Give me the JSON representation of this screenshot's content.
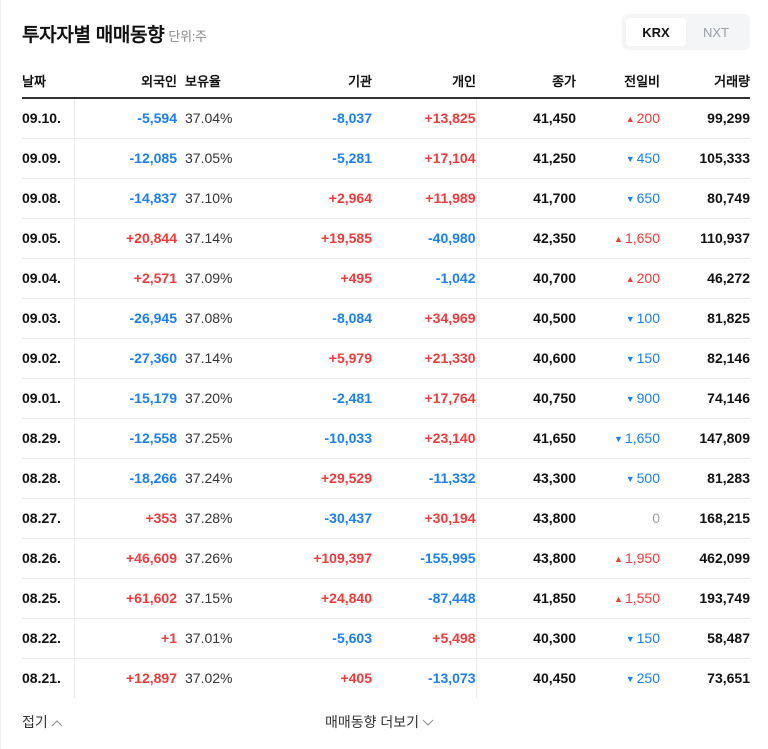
{
  "header": {
    "title": "투자자별 매매동향",
    "unit": "단위:주",
    "markets": [
      {
        "label": "KRX",
        "active": true
      },
      {
        "label": "NXT",
        "active": false
      }
    ]
  },
  "table": {
    "columns": [
      "날짜",
      "외국인",
      "보유율",
      "기관",
      "개인",
      "종가",
      "전일비",
      "거래량"
    ],
    "rows": [
      {
        "date": "09.10.",
        "foreign": "-5,594",
        "foreign_dir": "down",
        "own": "37.04%",
        "inst": "-8,037",
        "inst_dir": "down",
        "indiv": "+13,825",
        "indiv_dir": "up",
        "close": "41,450",
        "chg": "200",
        "chg_dir": "up",
        "vol": "99,299"
      },
      {
        "date": "09.09.",
        "foreign": "-12,085",
        "foreign_dir": "down",
        "own": "37.05%",
        "inst": "-5,281",
        "inst_dir": "down",
        "indiv": "+17,104",
        "indiv_dir": "up",
        "close": "41,250",
        "chg": "450",
        "chg_dir": "down",
        "vol": "105,333"
      },
      {
        "date": "09.08.",
        "foreign": "-14,837",
        "foreign_dir": "down",
        "own": "37.10%",
        "inst": "+2,964",
        "inst_dir": "up",
        "indiv": "+11,989",
        "indiv_dir": "up",
        "close": "41,700",
        "chg": "650",
        "chg_dir": "down",
        "vol": "80,749"
      },
      {
        "date": "09.05.",
        "foreign": "+20,844",
        "foreign_dir": "up",
        "own": "37.14%",
        "inst": "+19,585",
        "inst_dir": "up",
        "indiv": "-40,980",
        "indiv_dir": "down",
        "close": "42,350",
        "chg": "1,650",
        "chg_dir": "up",
        "vol": "110,937"
      },
      {
        "date": "09.04.",
        "foreign": "+2,571",
        "foreign_dir": "up",
        "own": "37.09%",
        "inst": "+495",
        "inst_dir": "up",
        "indiv": "-1,042",
        "indiv_dir": "down",
        "close": "40,700",
        "chg": "200",
        "chg_dir": "up",
        "vol": "46,272"
      },
      {
        "date": "09.03.",
        "foreign": "-26,945",
        "foreign_dir": "down",
        "own": "37.08%",
        "inst": "-8,084",
        "inst_dir": "down",
        "indiv": "+34,969",
        "indiv_dir": "up",
        "close": "40,500",
        "chg": "100",
        "chg_dir": "down",
        "vol": "81,825"
      },
      {
        "date": "09.02.",
        "foreign": "-27,360",
        "foreign_dir": "down",
        "own": "37.14%",
        "inst": "+5,979",
        "inst_dir": "up",
        "indiv": "+21,330",
        "indiv_dir": "up",
        "close": "40,600",
        "chg": "150",
        "chg_dir": "down",
        "vol": "82,146"
      },
      {
        "date": "09.01.",
        "foreign": "-15,179",
        "foreign_dir": "down",
        "own": "37.20%",
        "inst": "-2,481",
        "inst_dir": "down",
        "indiv": "+17,764",
        "indiv_dir": "up",
        "close": "40,750",
        "chg": "900",
        "chg_dir": "down",
        "vol": "74,146"
      },
      {
        "date": "08.29.",
        "foreign": "-12,558",
        "foreign_dir": "down",
        "own": "37.25%",
        "inst": "-10,033",
        "inst_dir": "down",
        "indiv": "+23,140",
        "indiv_dir": "up",
        "close": "41,650",
        "chg": "1,650",
        "chg_dir": "down",
        "vol": "147,809"
      },
      {
        "date": "08.28.",
        "foreign": "-18,266",
        "foreign_dir": "down",
        "own": "37.24%",
        "inst": "+29,529",
        "inst_dir": "up",
        "indiv": "-11,332",
        "indiv_dir": "down",
        "close": "43,300",
        "chg": "500",
        "chg_dir": "down",
        "vol": "81,283"
      },
      {
        "date": "08.27.",
        "foreign": "+353",
        "foreign_dir": "up",
        "own": "37.28%",
        "inst": "-30,437",
        "inst_dir": "down",
        "indiv": "+30,194",
        "indiv_dir": "up",
        "close": "43,800",
        "chg": "0",
        "chg_dir": "flat",
        "vol": "168,215"
      },
      {
        "date": "08.26.",
        "foreign": "+46,609",
        "foreign_dir": "up",
        "own": "37.26%",
        "inst": "+109,397",
        "inst_dir": "up",
        "indiv": "-155,995",
        "indiv_dir": "down",
        "close": "43,800",
        "chg": "1,950",
        "chg_dir": "up",
        "vol": "462,099"
      },
      {
        "date": "08.25.",
        "foreign": "+61,602",
        "foreign_dir": "up",
        "own": "37.15%",
        "inst": "+24,840",
        "inst_dir": "up",
        "indiv": "-87,448",
        "indiv_dir": "down",
        "close": "41,850",
        "chg": "1,550",
        "chg_dir": "up",
        "vol": "193,749"
      },
      {
        "date": "08.22.",
        "foreign": "+1",
        "foreign_dir": "up",
        "own": "37.01%",
        "inst": "-5,603",
        "inst_dir": "down",
        "indiv": "+5,498",
        "indiv_dir": "up",
        "close": "40,300",
        "chg": "150",
        "chg_dir": "down",
        "vol": "58,487"
      },
      {
        "date": "08.21.",
        "foreign": "+12,897",
        "foreign_dir": "up",
        "own": "37.02%",
        "inst": "+405",
        "inst_dir": "up",
        "indiv": "-13,073",
        "indiv_dir": "down",
        "close": "40,450",
        "chg": "250",
        "chg_dir": "down",
        "vol": "73,651"
      }
    ]
  },
  "footer": {
    "fold_label": "접기",
    "more_label": "매매동향 더보기"
  },
  "colors": {
    "up": "#ee3b3b",
    "down": "#1a7ff0",
    "flat": "#9aa0a6"
  },
  "icons": {
    "up_arrow": "▲",
    "down_arrow": "▼"
  }
}
